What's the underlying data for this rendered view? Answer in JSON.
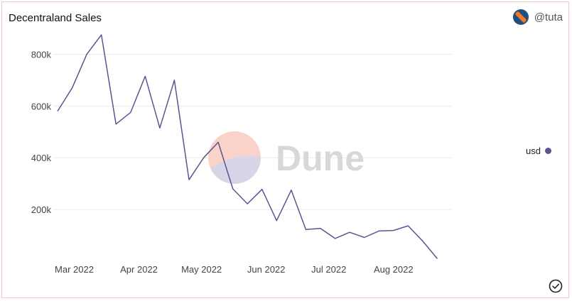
{
  "header": {
    "title": "Decentraland Sales",
    "author": "@tuta",
    "avatar_icon": "avatar-icon"
  },
  "watermark": {
    "text": "Dune"
  },
  "colors": {
    "line": "#5c5490",
    "grid": "#ececec",
    "watermark_top": "#f9d3c9",
    "watermark_bottom": "#d7d5e8"
  },
  "chart_data": {
    "type": "line",
    "title": "Decentraland Sales",
    "xlabel": "",
    "ylabel": "",
    "ylim": [
      0,
      900000
    ],
    "y_ticks": [
      {
        "value": 200000,
        "label": "200k"
      },
      {
        "value": 400000,
        "label": "400k"
      },
      {
        "value": 600000,
        "label": "600k"
      },
      {
        "value": 800000,
        "label": "800k"
      }
    ],
    "x_range": [
      "2022-02-21",
      "2022-08-29"
    ],
    "x_ticks": [
      {
        "date": "2022-03-01",
        "label": "Mar 2022"
      },
      {
        "date": "2022-04-01",
        "label": "Apr 2022"
      },
      {
        "date": "2022-05-01",
        "label": "May 2022"
      },
      {
        "date": "2022-06-01",
        "label": "Jun 2022"
      },
      {
        "date": "2022-07-01",
        "label": "Jul 2022"
      },
      {
        "date": "2022-08-01",
        "label": "Aug 2022"
      }
    ],
    "grid": true,
    "legend_position": "right",
    "series": [
      {
        "name": "usd",
        "color": "#5c5490",
        "points": [
          {
            "x": "2022-02-21",
            "y": 580000
          },
          {
            "x": "2022-02-28",
            "y": 670000
          },
          {
            "x": "2022-03-07",
            "y": 800000
          },
          {
            "x": "2022-03-14",
            "y": 875000
          },
          {
            "x": "2022-03-21",
            "y": 530000
          },
          {
            "x": "2022-03-28",
            "y": 575000
          },
          {
            "x": "2022-04-04",
            "y": 715000
          },
          {
            "x": "2022-04-11",
            "y": 515000
          },
          {
            "x": "2022-04-18",
            "y": 700000
          },
          {
            "x": "2022-04-25",
            "y": 315000
          },
          {
            "x": "2022-05-02",
            "y": 400000
          },
          {
            "x": "2022-05-09",
            "y": 460000
          },
          {
            "x": "2022-05-16",
            "y": 280000
          },
          {
            "x": "2022-05-23",
            "y": 222000
          },
          {
            "x": "2022-05-30",
            "y": 278000
          },
          {
            "x": "2022-06-06",
            "y": 157000
          },
          {
            "x": "2022-06-13",
            "y": 275000
          },
          {
            "x": "2022-06-20",
            "y": 123000
          },
          {
            "x": "2022-06-27",
            "y": 127000
          },
          {
            "x": "2022-07-04",
            "y": 88000
          },
          {
            "x": "2022-07-11",
            "y": 112000
          },
          {
            "x": "2022-07-18",
            "y": 92000
          },
          {
            "x": "2022-07-25",
            "y": 117000
          },
          {
            "x": "2022-08-01",
            "y": 119000
          },
          {
            "x": "2022-08-08",
            "y": 137000
          },
          {
            "x": "2022-08-15",
            "y": 78000
          },
          {
            "x": "2022-08-22",
            "y": 10000
          }
        ]
      }
    ]
  }
}
